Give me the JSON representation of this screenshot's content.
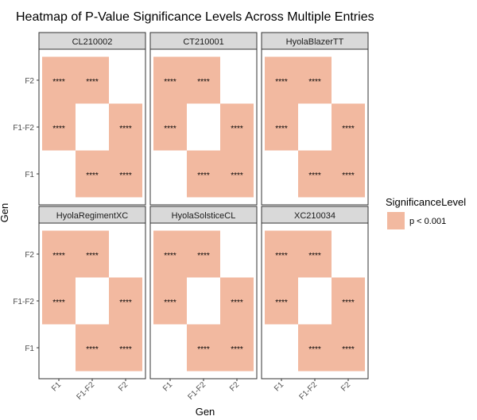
{
  "chart_data": {
    "type": "heatmap",
    "title": "Heatmap of P-Value Significance Levels Across Multiple Entries",
    "xlabel": "Gen",
    "ylabel": "Gen",
    "x_categories": [
      "F1",
      "F1-F2",
      "F2"
    ],
    "y_categories": [
      "F1",
      "F1-F2",
      "F2"
    ],
    "legend": {
      "title": "SignificanceLevel",
      "entries": [
        {
          "label": "p < 0.001",
          "color": "#F2B9A0"
        }
      ],
      "position": "right"
    },
    "cell_label": "****",
    "fill_color": "#F2B9A0",
    "grid": false,
    "panels": [
      {
        "name": "CL210002",
        "cells": [
          {
            "x": "F1",
            "y": "F2",
            "level": "p < 0.001",
            "label": "****"
          },
          {
            "x": "F1-F2",
            "y": "F2",
            "level": "p < 0.001",
            "label": "****"
          },
          {
            "x": "F1",
            "y": "F1-F2",
            "level": "p < 0.001",
            "label": "****"
          },
          {
            "x": "F2",
            "y": "F1-F2",
            "level": "p < 0.001",
            "label": "****"
          },
          {
            "x": "F1-F2",
            "y": "F1",
            "level": "p < 0.001",
            "label": "****"
          },
          {
            "x": "F2",
            "y": "F1",
            "level": "p < 0.001",
            "label": "****"
          }
        ]
      },
      {
        "name": "CT210001",
        "cells": [
          {
            "x": "F1",
            "y": "F2",
            "level": "p < 0.001",
            "label": "****"
          },
          {
            "x": "F1-F2",
            "y": "F2",
            "level": "p < 0.001",
            "label": "****"
          },
          {
            "x": "F1",
            "y": "F1-F2",
            "level": "p < 0.001",
            "label": "****"
          },
          {
            "x": "F2",
            "y": "F1-F2",
            "level": "p < 0.001",
            "label": "****"
          },
          {
            "x": "F1-F2",
            "y": "F1",
            "level": "p < 0.001",
            "label": "****"
          },
          {
            "x": "F2",
            "y": "F1",
            "level": "p < 0.001",
            "label": "****"
          }
        ]
      },
      {
        "name": "HyolaBlazerTT",
        "cells": [
          {
            "x": "F1",
            "y": "F2",
            "level": "p < 0.001",
            "label": "****"
          },
          {
            "x": "F1-F2",
            "y": "F2",
            "level": "p < 0.001",
            "label": "****"
          },
          {
            "x": "F1",
            "y": "F1-F2",
            "level": "p < 0.001",
            "label": "****"
          },
          {
            "x": "F2",
            "y": "F1-F2",
            "level": "p < 0.001",
            "label": "****"
          },
          {
            "x": "F1-F2",
            "y": "F1",
            "level": "p < 0.001",
            "label": "****"
          },
          {
            "x": "F2",
            "y": "F1",
            "level": "p < 0.001",
            "label": "****"
          }
        ]
      },
      {
        "name": "HyolaRegimentXC",
        "cells": [
          {
            "x": "F1",
            "y": "F2",
            "level": "p < 0.001",
            "label": "****"
          },
          {
            "x": "F1-F2",
            "y": "F2",
            "level": "p < 0.001",
            "label": "****"
          },
          {
            "x": "F1",
            "y": "F1-F2",
            "level": "p < 0.001",
            "label": "****"
          },
          {
            "x": "F2",
            "y": "F1-F2",
            "level": "p < 0.001",
            "label": "****"
          },
          {
            "x": "F1-F2",
            "y": "F1",
            "level": "p < 0.001",
            "label": "****"
          },
          {
            "x": "F2",
            "y": "F1",
            "level": "p < 0.001",
            "label": "****"
          }
        ]
      },
      {
        "name": "HyolaSolsticeCL",
        "cells": [
          {
            "x": "F1",
            "y": "F2",
            "level": "p < 0.001",
            "label": "****"
          },
          {
            "x": "F1-F2",
            "y": "F2",
            "level": "p < 0.001",
            "label": "****"
          },
          {
            "x": "F1",
            "y": "F1-F2",
            "level": "p < 0.001",
            "label": "****"
          },
          {
            "x": "F2",
            "y": "F1-F2",
            "level": "p < 0.001",
            "label": "****"
          },
          {
            "x": "F1-F2",
            "y": "F1",
            "level": "p < 0.001",
            "label": "****"
          },
          {
            "x": "F2",
            "y": "F1",
            "level": "p < 0.001",
            "label": "****"
          }
        ]
      },
      {
        "name": "XC210034",
        "cells": [
          {
            "x": "F1",
            "y": "F2",
            "level": "p < 0.001",
            "label": "****"
          },
          {
            "x": "F1-F2",
            "y": "F2",
            "level": "p < 0.001",
            "label": "****"
          },
          {
            "x": "F1",
            "y": "F1-F2",
            "level": "p < 0.001",
            "label": "****"
          },
          {
            "x": "F2",
            "y": "F1-F2",
            "level": "p < 0.001",
            "label": "****"
          },
          {
            "x": "F1-F2",
            "y": "F1",
            "level": "p < 0.001",
            "label": "****"
          },
          {
            "x": "F2",
            "y": "F1",
            "level": "p < 0.001",
            "label": "****"
          }
        ]
      }
    ]
  }
}
